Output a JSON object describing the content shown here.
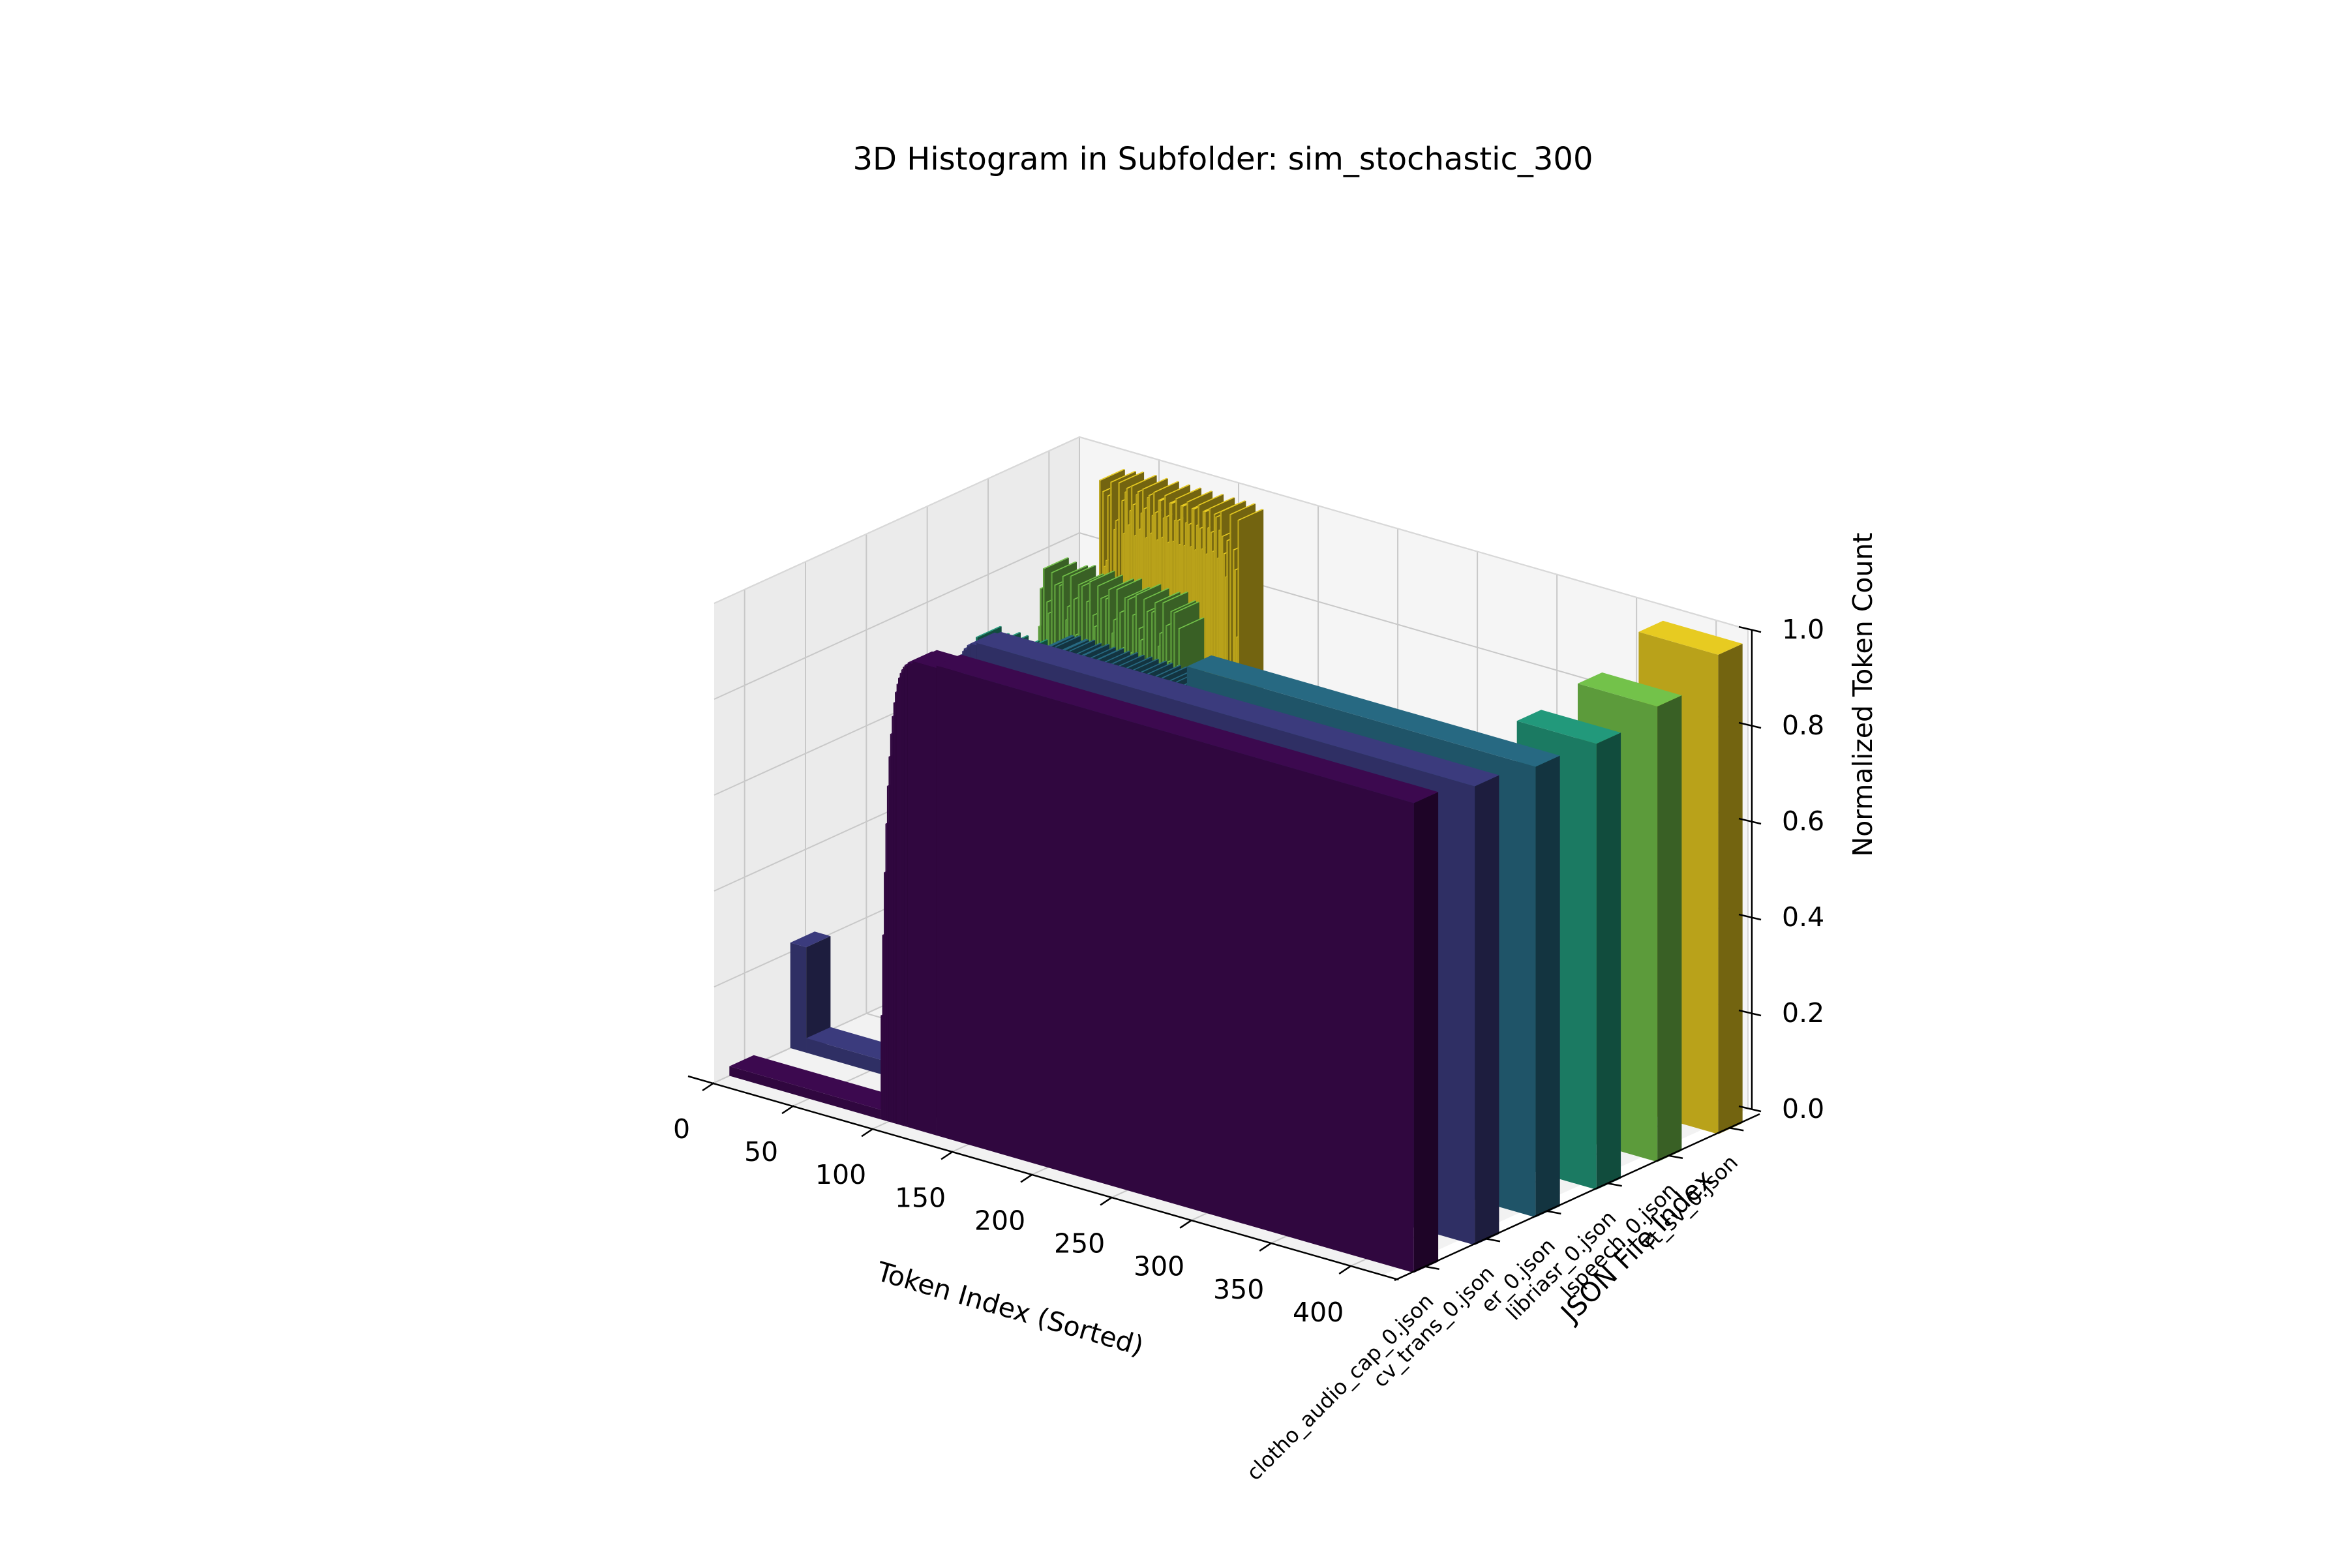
{
  "chart_data": {
    "type": "bar3d",
    "title": "3D Histogram in Subfolder: sim_stochastic_300",
    "xlabel": "Token Index (Sorted)",
    "ylabel": "JSON File Index",
    "zlabel": "Normalized Token Count",
    "xlim": [
      0,
      420
    ],
    "zlim": [
      0,
      1.0
    ],
    "x_ticks": [
      "0",
      "50",
      "100",
      "150",
      "200",
      "250",
      "300",
      "350",
      "400"
    ],
    "z_ticks": [
      "0.0",
      "0.2",
      "0.4",
      "0.6",
      "0.8",
      "1.0"
    ],
    "y_ticks": [
      "clotho_audio_cap_0.json",
      "cv_trans_0.json",
      "er_0.json",
      "libriasr_0.json",
      "lspeech_0.json",
      "rt_sv_0.json"
    ],
    "colormap": "viridis",
    "grid": true,
    "series": [
      {
        "name": "clotho_audio_cap_0.json",
        "color": "#30073f",
        "tokens": 430,
        "plateau": 0.98,
        "rise_start": 95
      },
      {
        "name": "cv_trans_0.json",
        "color": "#2f2f64",
        "tokens": 430,
        "plateau": 0.96,
        "rise_start": 95
      },
      {
        "name": "er_0.json",
        "color": "#1f5468",
        "tokens": 430,
        "plateau": 0.94,
        "rise_start": 120
      },
      {
        "name": "libriasr_0.json",
        "color": "#1b7a62",
        "tokens": 430,
        "plateau": 0.93,
        "rise_start": 380
      },
      {
        "name": "lspeech_0.json",
        "color": "#5c9b3b",
        "tokens": 430,
        "plateau": 0.95,
        "rise_start": 380
      },
      {
        "name": "rt_sv_0.json",
        "color": "#b9a21a",
        "tokens": 430,
        "plateau": 1.0,
        "rise_start": 380
      }
    ]
  }
}
